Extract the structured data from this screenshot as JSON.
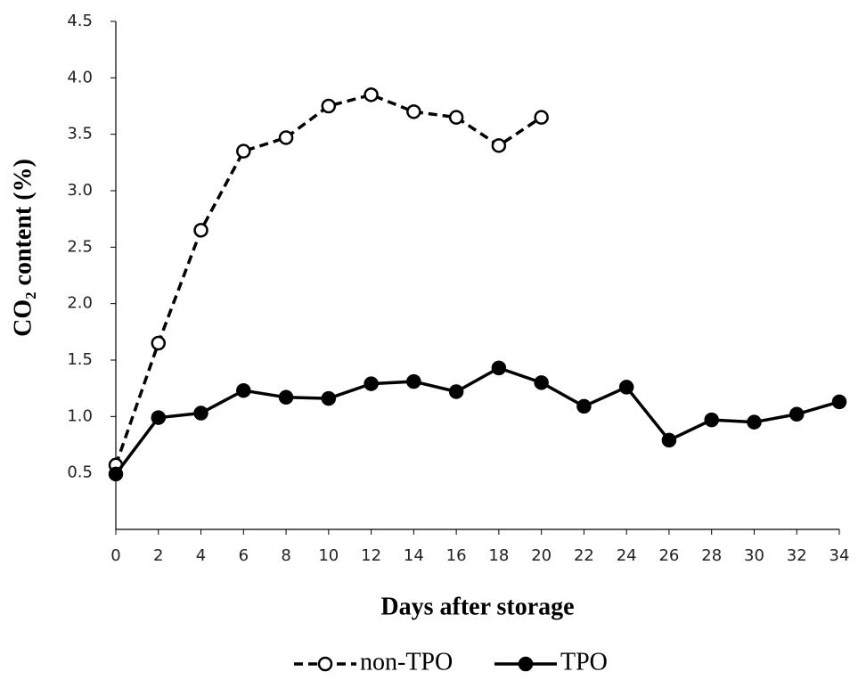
{
  "chart_data": {
    "type": "line",
    "x_label": "Days after storage",
    "y_label": "CO₂ content (%)",
    "x": [
      0,
      2,
      4,
      6,
      8,
      10,
      12,
      14,
      16,
      18,
      20,
      22,
      24,
      26,
      28,
      30,
      32,
      34
    ],
    "series": [
      {
        "name": "non-TPO",
        "color": "#000000",
        "line_style": "dashed",
        "marker": "open",
        "values": [
          0.57,
          1.65,
          2.65,
          3.35,
          3.47,
          3.75,
          3.85,
          3.7,
          3.65,
          3.4,
          3.65,
          null,
          null,
          null,
          null,
          null,
          null,
          null
        ]
      },
      {
        "name": "TPO",
        "color": "#000000",
        "line_style": "solid",
        "marker": "filled",
        "values": [
          0.49,
          0.99,
          1.03,
          1.23,
          1.17,
          1.16,
          1.29,
          1.31,
          1.22,
          1.43,
          1.3,
          1.09,
          1.26,
          0.79,
          0.97,
          0.95,
          1.02,
          1.13
        ]
      }
    ],
    "xlim": [
      0,
      34
    ],
    "xticks": [
      0,
      2,
      4,
      6,
      8,
      10,
      12,
      14,
      16,
      18,
      20,
      22,
      24,
      26,
      28,
      30,
      32,
      34
    ],
    "ylim": [
      0,
      4.5
    ],
    "yticks": [
      0.5,
      {
        "value": 1,
        "label": "1.0"
      },
      1.5,
      {
        "value": 2,
        "label": "2.0"
      },
      2.5,
      {
        "value": 3,
        "label": "3.0"
      },
      3.5,
      {
        "value": 4,
        "label": "4.0"
      },
      4.5
    ],
    "grid": false,
    "legend": "bottom"
  }
}
